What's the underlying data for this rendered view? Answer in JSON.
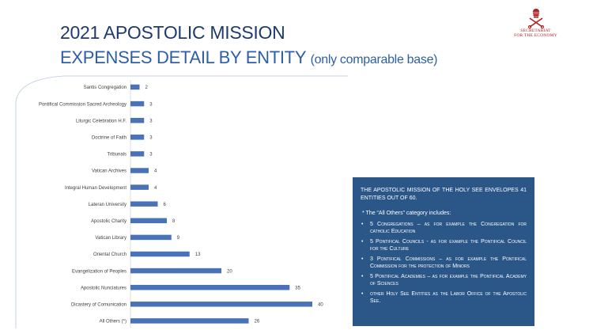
{
  "header": {
    "title_line1": "2021 APOSTOLIC MISSION",
    "title_line2": "EXPENSES DETAIL BY ENTITY",
    "title_suffix": "(only comparable base)"
  },
  "logo": {
    "line1": "SECRETARIAT",
    "line2": "FOR THE ECONOMY",
    "emblem": "papal-keys-emblem-icon",
    "color": "#b22222"
  },
  "chart_data": {
    "type": "bar",
    "orientation": "horizontal",
    "categories": [
      "Santis Congregation",
      "Pontifical Commission Sacred Archeology",
      "Liturgic Celebration H.F.",
      "Doctrine of Faith",
      "Tribunals",
      "Vatican Archives",
      "Integral Human Development",
      "Lateran University",
      "Apostolic Charity",
      "Vatican Library",
      "Oriental Church",
      "Evangelization of Peoples",
      "Apostolic Nunciatures",
      "Dicastery of Comunication",
      "All Others (*)"
    ],
    "values": [
      2,
      3,
      3,
      3,
      3,
      4,
      4,
      6,
      8,
      9,
      13,
      20,
      35,
      40,
      26
    ],
    "xlim": [
      0,
      40
    ],
    "grid": false,
    "bar_color": "#4a72b8"
  },
  "infobox": {
    "intro": "The Apostolic Mission of the Holy See envelopes 41 entities out of 60.",
    "note": "*   The “All Others” category includes:",
    "items": [
      "5 Congregations – as for example the Congregation for catholic Education",
      "5 Pontifical Councils - as for example the Pontifical Council for the Culture",
      "3 Pontifical Commissions – as for example the Pontifical Commission for the protection of Minors",
      "5 Pontifical Academies – as for example the Pontifical Academy of Sciences",
      "other Holy See Entities as the Labor Office of the Apostolic See."
    ]
  }
}
